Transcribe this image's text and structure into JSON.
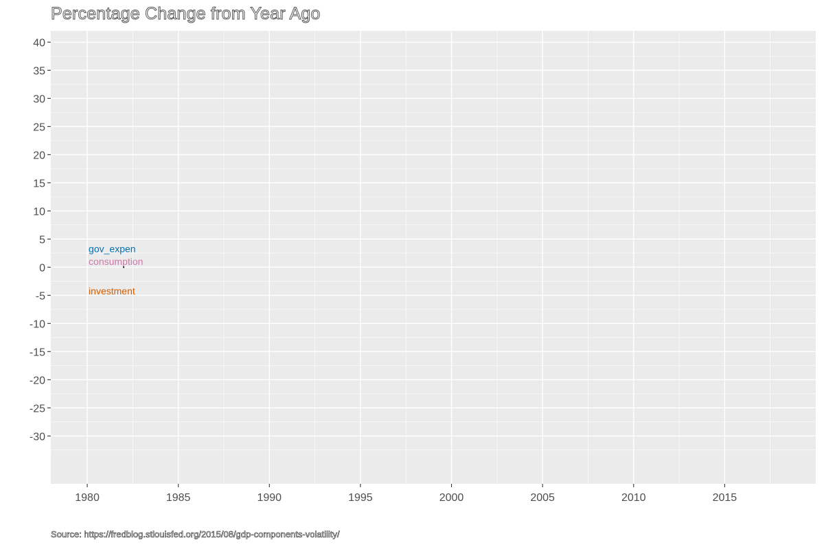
{
  "chart_data": {
    "type": "line",
    "title": "Percentage Change from Year Ago",
    "caption": "Source: https://fredblog.stlouisfed.org/2015/08/gdp-components-volatility/",
    "xlabel": "",
    "ylabel": "",
    "xlim": [
      1978,
      2020
    ],
    "ylim": [
      -38.5,
      42
    ],
    "x_ticks": [
      1980,
      1985,
      1990,
      1995,
      2000,
      2005,
      2010,
      2015
    ],
    "y_ticks": [
      -30,
      -25,
      -20,
      -15,
      -10,
      -5,
      0,
      5,
      10,
      15,
      20,
      25,
      30,
      35,
      40
    ],
    "grid": true,
    "legend": "none",
    "series": [
      {
        "name": "gov_expen",
        "color": "#0072B2",
        "label_x": 1980,
        "label_y": 3.3,
        "points": []
      },
      {
        "name": "consumption",
        "color": "#CC79A7",
        "label_x": 1980,
        "label_y": 1.0,
        "points": []
      },
      {
        "name": "investment",
        "color": "#D55E00",
        "label_x": 1980,
        "label_y": -4.2,
        "points": [
          [
            1982,
            0
          ]
        ]
      }
    ]
  }
}
